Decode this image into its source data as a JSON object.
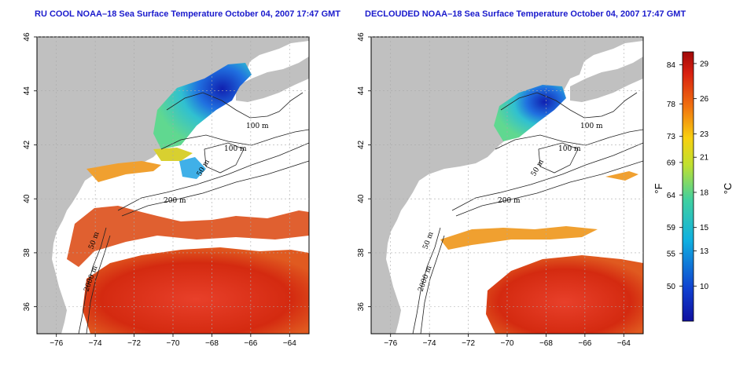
{
  "panels": [
    {
      "title": "RU COOL NOAA–18 Sea Surface Temperature October 04, 2007 17:47 GMT"
    },
    {
      "title": "DECLOUDED NOAA–18 Sea Surface Temperature October 04, 2007 17:47 GMT"
    }
  ],
  "axes": {
    "lon_ticks": [
      "−76",
      "−74",
      "−72",
      "−70",
      "−68",
      "−66",
      "−64"
    ],
    "lat_ticks": [
      "36",
      "38",
      "40",
      "42",
      "44",
      "46"
    ],
    "lon_range": [
      -77,
      -63
    ],
    "lat_range": [
      35,
      46
    ]
  },
  "contour_labels": [
    "100 m",
    "100 m",
    "50 m",
    "200 m",
    "50 m",
    "2000 m"
  ],
  "colorbar": {
    "fahrenheit_ticks": [
      "84",
      "78",
      "73",
      "69",
      "64",
      "59",
      "55",
      "50"
    ],
    "celsius_ticks": [
      "29",
      "26",
      "23",
      "21",
      "18",
      "15",
      "13",
      "10"
    ],
    "fahrenheit_unit": "°F",
    "celsius_unit": "°C",
    "range_celsius": [
      7,
      30
    ]
  },
  "colors": {
    "land": "#c0c0c0",
    "title": "#1a1acc",
    "warm": "#d42a10",
    "cool": "#1030c0"
  }
}
